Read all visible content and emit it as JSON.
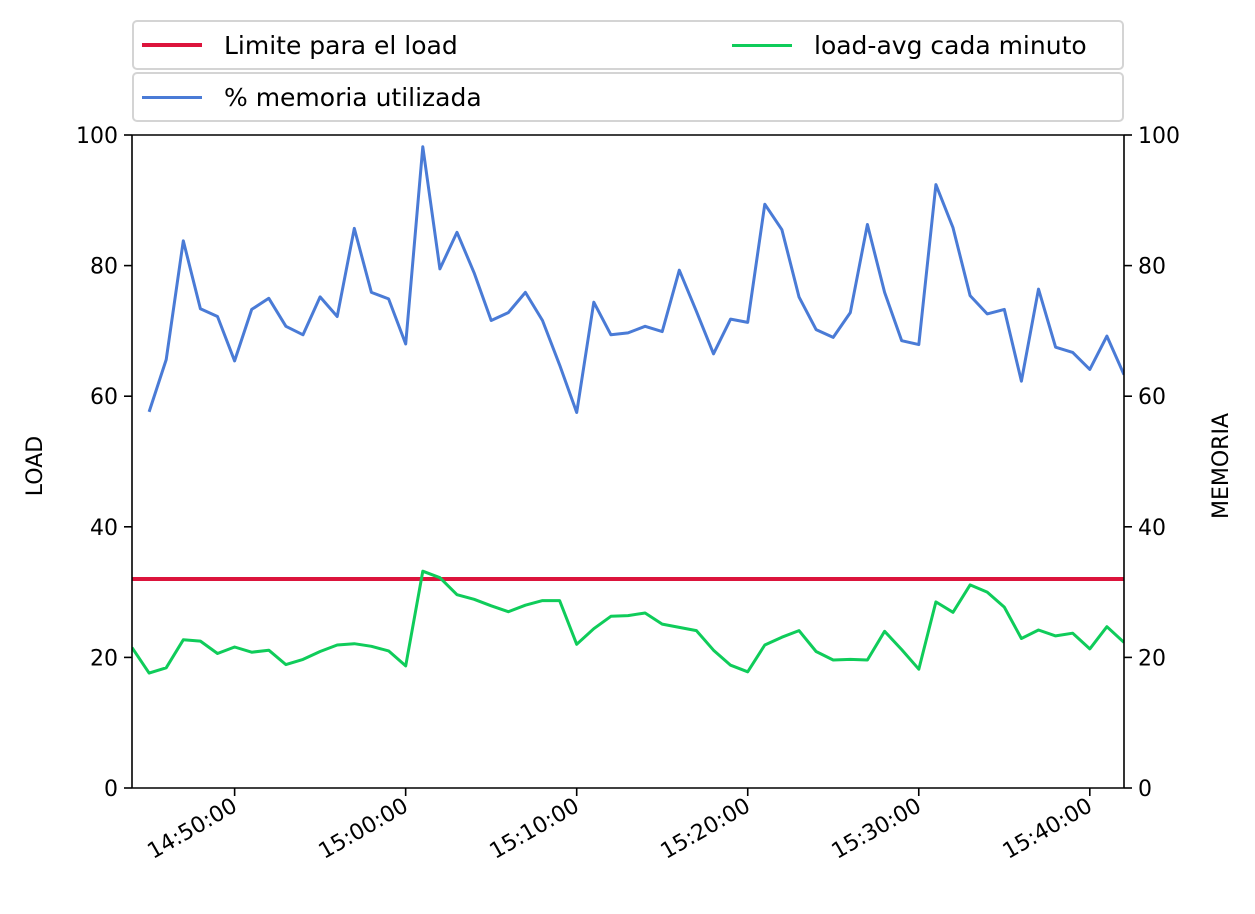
{
  "chart_data": {
    "type": "line",
    "title": "",
    "ylabel": "LOAD",
    "y2label": "MEMORIA",
    "ylim": [
      0,
      100
    ],
    "y2lim": [
      0,
      100
    ],
    "yticks": [
      0,
      20,
      40,
      60,
      80,
      100
    ],
    "y2ticks": [
      0,
      20,
      40,
      60,
      80,
      100
    ],
    "xlim": [
      "14:44:00",
      "15:42:00"
    ],
    "xticks": [
      "14:50:00",
      "15:00:00",
      "15:10:00",
      "15:20:00",
      "15:30:00",
      "15:40:00"
    ],
    "x": [
      "14:44:00",
      "14:45:00",
      "14:46:00",
      "14:47:00",
      "14:48:00",
      "14:49:00",
      "14:50:00",
      "14:51:00",
      "14:52:00",
      "14:53:00",
      "14:54:00",
      "14:55:00",
      "14:56:00",
      "14:57:00",
      "14:58:00",
      "14:59:00",
      "15:00:00",
      "15:01:00",
      "15:02:00",
      "15:03:00",
      "15:04:00",
      "15:05:00",
      "15:06:00",
      "15:07:00",
      "15:08:00",
      "15:09:00",
      "15:10:00",
      "15:11:00",
      "15:12:00",
      "15:13:00",
      "15:14:00",
      "15:15:00",
      "15:16:00",
      "15:17:00",
      "15:18:00",
      "15:19:00",
      "15:20:00",
      "15:21:00",
      "15:22:00",
      "15:23:00",
      "15:24:00",
      "15:25:00",
      "15:26:00",
      "15:27:00",
      "15:28:00",
      "15:29:00",
      "15:30:00",
      "15:31:00",
      "15:32:00",
      "15:33:00",
      "15:34:00",
      "15:35:00",
      "15:36:00",
      "15:37:00",
      "15:38:00",
      "15:39:00",
      "15:40:00",
      "15:41:00",
      "15:42:00"
    ],
    "grid": false,
    "legend_position": "top (above plot, two boxes)",
    "series": [
      {
        "name": "Limite para el load",
        "axis": "left",
        "color": "#dc143c",
        "kind": "constant",
        "value": 32
      },
      {
        "name": "load-avg cada minuto",
        "axis": "left",
        "color": "#0fcc5a",
        "values": [
          21.5,
          17.6,
          18.4,
          22.7,
          22.5,
          20.6,
          21.6,
          20.8,
          21.1,
          18.9,
          19.7,
          20.9,
          21.9,
          22.1,
          21.7,
          21.0,
          18.7,
          33.2,
          32.2,
          29.6,
          28.9,
          27.9,
          27.0,
          28.0,
          28.7,
          28.7,
          22.0,
          24.4,
          26.3,
          26.4,
          26.8,
          25.1,
          24.6,
          24.1,
          21.1,
          18.8,
          17.8,
          21.9,
          23.1,
          24.1,
          20.9,
          19.6,
          19.7,
          19.6,
          24.0,
          21.2,
          18.2,
          28.5,
          26.9,
          31.1,
          30.0,
          27.7,
          22.9,
          24.2,
          23.3,
          23.7,
          21.3,
          24.7,
          22.3
        ]
      },
      {
        "name": "% memoria utilizada",
        "axis": "right",
        "color": "#4a7bd6",
        "values": [
          null,
          57.6,
          65.6,
          83.8,
          73.4,
          72.2,
          65.4,
          73.3,
          75.0,
          70.7,
          69.4,
          75.2,
          72.2,
          85.7,
          75.9,
          74.9,
          68.0,
          98.2,
          79.5,
          85.1,
          78.9,
          71.6,
          72.8,
          75.9,
          71.6,
          64.8,
          57.5,
          74.4,
          69.4,
          69.7,
          70.7,
          69.9,
          79.3,
          73.0,
          66.5,
          71.8,
          71.3,
          89.4,
          85.5,
          75.2,
          70.2,
          69.0,
          72.8,
          86.3,
          75.9,
          68.5,
          67.9,
          92.4,
          85.8,
          75.4,
          72.6,
          73.3,
          62.3,
          76.4,
          67.5,
          66.7,
          64.1,
          69.2,
          63.3
        ]
      }
    ]
  }
}
